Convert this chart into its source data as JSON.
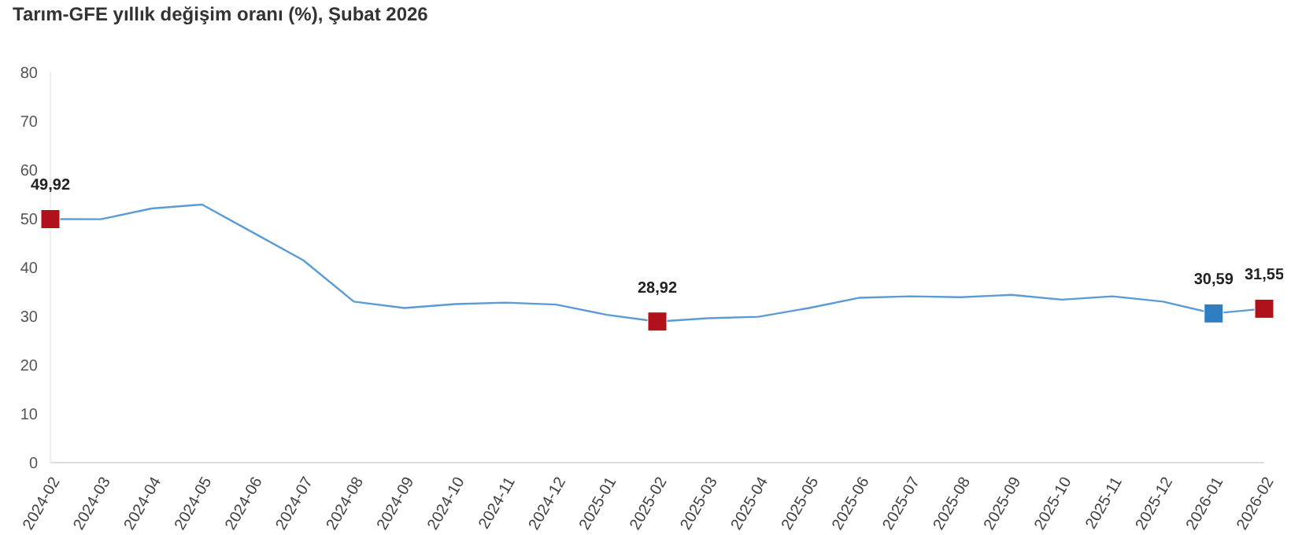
{
  "chart_data": {
    "type": "line",
    "title": "Tarım-GFE yıllık değişim oranı (%), Şubat 2026",
    "categories": [
      "2024-02",
      "2024-03",
      "2024-04",
      "2024-05",
      "2024-06",
      "2024-07",
      "2024-08",
      "2024-09",
      "2024-10",
      "2024-11",
      "2024-12",
      "2025-01",
      "2025-02",
      "2025-03",
      "2025-04",
      "2025-05",
      "2025-06",
      "2025-07",
      "2025-08",
      "2025-09",
      "2025-10",
      "2025-11",
      "2025-12",
      "2026-01",
      "2026-02"
    ],
    "series": [
      {
        "color": "#5b9bd5",
        "marker": "none",
        "values": [
          49.92,
          49.9,
          52.1,
          52.9,
          47.2,
          41.5,
          33.0,
          31.7,
          32.5,
          32.8,
          32.4,
          30.3,
          28.92,
          29.6,
          29.9,
          31.7,
          33.8,
          34.1,
          33.9,
          34.4,
          33.4,
          34.1,
          33.0,
          30.59,
          31.55
        ]
      },
      {
        "type": "scatter",
        "marker": "square",
        "colors": [
          "#b0111b",
          null,
          null,
          null,
          null,
          null,
          null,
          null,
          null,
          null,
          null,
          null,
          "#b0111b",
          null,
          null,
          null,
          null,
          null,
          null,
          null,
          null,
          null,
          null,
          "#2e7ec1",
          "#b0111b"
        ],
        "values": [
          49.92,
          null,
          null,
          null,
          null,
          null,
          null,
          null,
          null,
          null,
          null,
          null,
          28.92,
          null,
          null,
          null,
          null,
          null,
          null,
          null,
          null,
          null,
          null,
          30.59,
          31.55
        ],
        "value_labels": [
          "49,92",
          null,
          null,
          null,
          null,
          null,
          null,
          null,
          null,
          null,
          null,
          null,
          "28,92",
          null,
          null,
          null,
          null,
          null,
          null,
          null,
          null,
          null,
          null,
          "30,59",
          "31,55"
        ]
      }
    ],
    "ylim": [
      0,
      80
    ],
    "yticks": [
      0,
      10,
      20,
      30,
      40,
      50,
      60,
      70,
      80
    ],
    "grid": false,
    "legend": false
  }
}
